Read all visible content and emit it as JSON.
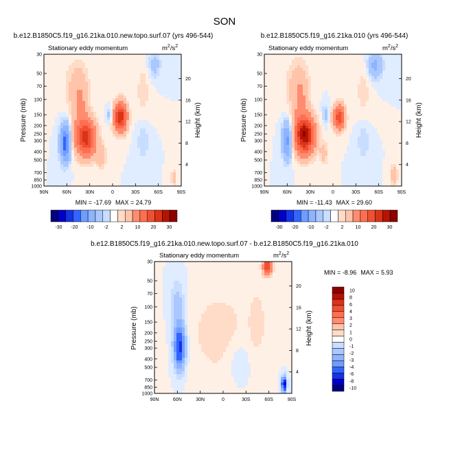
{
  "figure": {
    "title": "SON",
    "colors": {
      "neg": [
        "#000080",
        "#0000c8",
        "#1432e6",
        "#3264ff",
        "#5082ff",
        "#6e9cff",
        "#8cb4ff",
        "#aac8ff",
        "#c8ddff",
        "#e0ecff"
      ],
      "pos": [
        "#fff0e6",
        "#ffdcc8",
        "#ffc4aa",
        "#ffa88c",
        "#ff8c6e",
        "#ff6e50",
        "#f05032",
        "#dc3219",
        "#b41400",
        "#8c0000"
      ]
    }
  },
  "chart_data": [
    {
      "type": "heatmap",
      "title": "b.e12.B1850C5.f19_g16.21ka.010.new.topo.surf.07 (yrs 496-544)",
      "subtitle": "Stationary eddy momentum",
      "units_base": "m",
      "units_exp": "2",
      "units_den": "/s",
      "units_den_exp": "2",
      "xlabel": "",
      "ylabel": "Pressure (mb)",
      "ylabel_right": "Height (km)",
      "x_ticks": [
        "90N",
        "60N",
        "30N",
        "0",
        "30S",
        "60S",
        "90S"
      ],
      "x_range": [
        90,
        -90
      ],
      "y_ticks": [
        30,
        50,
        70,
        100,
        150,
        200,
        250,
        300,
        400,
        500,
        700,
        850,
        1000
      ],
      "y_range": [
        1000,
        30
      ],
      "y_scale": "log",
      "height_ticks": [
        4,
        8,
        12,
        16,
        20
      ],
      "min_label": "MIN = -17.69",
      "max_label": "MAX = 24.79",
      "min": -17.69,
      "max": 24.79,
      "features": [
        {
          "lat": -10,
          "p": 160,
          "value": 24.8,
          "lat_width": 8,
          "p_width": 0.35
        },
        {
          "lat": 35,
          "p": 280,
          "value": 22,
          "lat_width": 12,
          "p_width": 0.45
        },
        {
          "lat": 42,
          "p": 120,
          "value": 5,
          "lat_width": 10,
          "p_width": 0.8
        },
        {
          "lat": 62,
          "p": 320,
          "value": -17.7,
          "lat_width": 6,
          "p_width": 0.45
        },
        {
          "lat": 3,
          "p": 150,
          "value": -4,
          "lat_width": 4,
          "p_width": 0.2
        },
        {
          "lat": 15,
          "p": 450,
          "value": 4,
          "lat_width": 6,
          "p_width": 0.3
        },
        {
          "lat": 50,
          "p": 70,
          "value": 2,
          "lat_width": 15,
          "p_width": 0.7
        },
        {
          "lat": -55,
          "p": 40,
          "value": -3,
          "lat_width": 8,
          "p_width": 0.35
        },
        {
          "lat": -40,
          "p": 300,
          "value": -2,
          "lat_width": 8,
          "p_width": 0.5
        },
        {
          "lat": -40,
          "p": 80,
          "value": 1.5,
          "lat_width": 10,
          "p_width": 0.8
        },
        {
          "lat": -80,
          "p": 800,
          "value": 3,
          "lat_width": 4,
          "p_width": 0.2
        }
      ],
      "colorbar": {
        "labels": [
          "-30",
          "-20",
          "-10",
          "-2",
          "2",
          "10",
          "20",
          "30"
        ],
        "levels": [
          -30,
          -25,
          -20,
          -15,
          -10,
          -5,
          -2,
          -1,
          1,
          2,
          5,
          10,
          15,
          20,
          25,
          30
        ]
      }
    },
    {
      "type": "heatmap",
      "title": "b.e12.B1850C5.f19_g16.21ka.010 (yrs 496-544)",
      "subtitle": "Stationary eddy momentum",
      "units_base": "m",
      "units_exp": "2",
      "units_den": "/s",
      "units_den_exp": "2",
      "xlabel": "",
      "ylabel": "Pressure (mb)",
      "ylabel_right": "Height (km)",
      "x_ticks": [
        "90N",
        "60N",
        "30N",
        "0",
        "30S",
        "60S",
        "90S"
      ],
      "x_range": [
        90,
        -90
      ],
      "y_ticks": [
        30,
        50,
        70,
        100,
        150,
        200,
        250,
        300,
        400,
        500,
        700,
        850,
        1000
      ],
      "y_range": [
        1000,
        30
      ],
      "y_scale": "log",
      "height_ticks": [
        4,
        8,
        12,
        16,
        20
      ],
      "min_label": "MIN = -11.43",
      "max_label": "MAX = 29.60",
      "min": -11.43,
      "max": 29.6,
      "features": [
        {
          "lat": 37,
          "p": 260,
          "value": 29.6,
          "lat_width": 12,
          "p_width": 0.45
        },
        {
          "lat": -8,
          "p": 160,
          "value": 18,
          "lat_width": 7,
          "p_width": 0.3
        },
        {
          "lat": 42,
          "p": 110,
          "value": 5,
          "lat_width": 10,
          "p_width": 0.8
        },
        {
          "lat": 60,
          "p": 300,
          "value": -11.4,
          "lat_width": 6,
          "p_width": 0.45
        },
        {
          "lat": 10,
          "p": 150,
          "value": -3,
          "lat_width": 4,
          "p_width": 0.25
        },
        {
          "lat": 12,
          "p": 420,
          "value": 3,
          "lat_width": 5,
          "p_width": 0.3
        },
        {
          "lat": 50,
          "p": 70,
          "value": 2,
          "lat_width": 15,
          "p_width": 0.7
        },
        {
          "lat": -55,
          "p": 40,
          "value": -6,
          "lat_width": 9,
          "p_width": 0.35
        },
        {
          "lat": -40,
          "p": 300,
          "value": -2,
          "lat_width": 8,
          "p_width": 0.5
        },
        {
          "lat": -40,
          "p": 80,
          "value": 1.5,
          "lat_width": 10,
          "p_width": 0.8
        },
        {
          "lat": -80,
          "p": 750,
          "value": 5,
          "lat_width": 4,
          "p_width": 0.25
        }
      ],
      "colorbar": {
        "labels": [
          "-30",
          "-20",
          "-10",
          "-2",
          "2",
          "10",
          "20",
          "30"
        ],
        "levels": [
          -30,
          -25,
          -20,
          -15,
          -10,
          -5,
          -2,
          -1,
          1,
          2,
          5,
          10,
          15,
          20,
          25,
          30
        ]
      }
    },
    {
      "type": "heatmap",
      "title": "b.e12.B1850C5.f19_g16.21ka.010.new.topo.surf.07 - b.e12.B1850C5.f19_g16.21ka.010",
      "subtitle": "Stationary eddy momentum",
      "units_base": "m",
      "units_exp": "2",
      "units_den": "/s",
      "units_den_exp": "2",
      "xlabel": "",
      "ylabel": "Pressure (mb)",
      "ylabel_right": "Height (km)",
      "x_ticks": [
        "90N",
        "60N",
        "30N",
        "0",
        "30S",
        "60S",
        "90S"
      ],
      "x_range": [
        90,
        -90
      ],
      "y_ticks": [
        30,
        50,
        70,
        100,
        150,
        200,
        250,
        300,
        400,
        500,
        700,
        850,
        1000
      ],
      "y_range": [
        1000,
        30
      ],
      "y_scale": "log",
      "height_ticks": [
        4,
        8,
        12,
        16,
        20
      ],
      "min_label": "MIN = -8.96",
      "max_label": "MAX = 5.93",
      "min": -8.96,
      "max": 5.93,
      "features": [
        {
          "lat": 57,
          "p": 290,
          "value": -6.5,
          "lat_width": 7,
          "p_width": 0.55
        },
        {
          "lat": 60,
          "p": 100,
          "value": -1.5,
          "lat_width": 9,
          "p_width": 0.7
        },
        {
          "lat": -58,
          "p": 34,
          "value": 5.93,
          "lat_width": 6,
          "p_width": 0.22
        },
        {
          "lat": -80,
          "p": 780,
          "value": -8.96,
          "lat_width": 3,
          "p_width": 0.18
        },
        {
          "lat": 5,
          "p": 200,
          "value": 0.8,
          "lat_width": 40,
          "p_width": 1.2
        },
        {
          "lat": -20,
          "p": 400,
          "value": -0.6,
          "lat_width": 15,
          "p_width": 0.6
        },
        {
          "lat": -45,
          "p": 150,
          "value": 0.8,
          "lat_width": 10,
          "p_width": 0.8
        }
      ],
      "colorbar": {
        "labels": [
          "10",
          "8",
          "6",
          "4",
          "3",
          "2",
          "1",
          "0",
          "-1",
          "-2",
          "-3",
          "-4",
          "-6",
          "-8",
          "-10"
        ],
        "levels": [
          -10,
          -8,
          -6,
          -4,
          -3,
          -2,
          -1,
          -0.5,
          0.5,
          1,
          2,
          3,
          4,
          6,
          8,
          10
        ]
      }
    }
  ]
}
